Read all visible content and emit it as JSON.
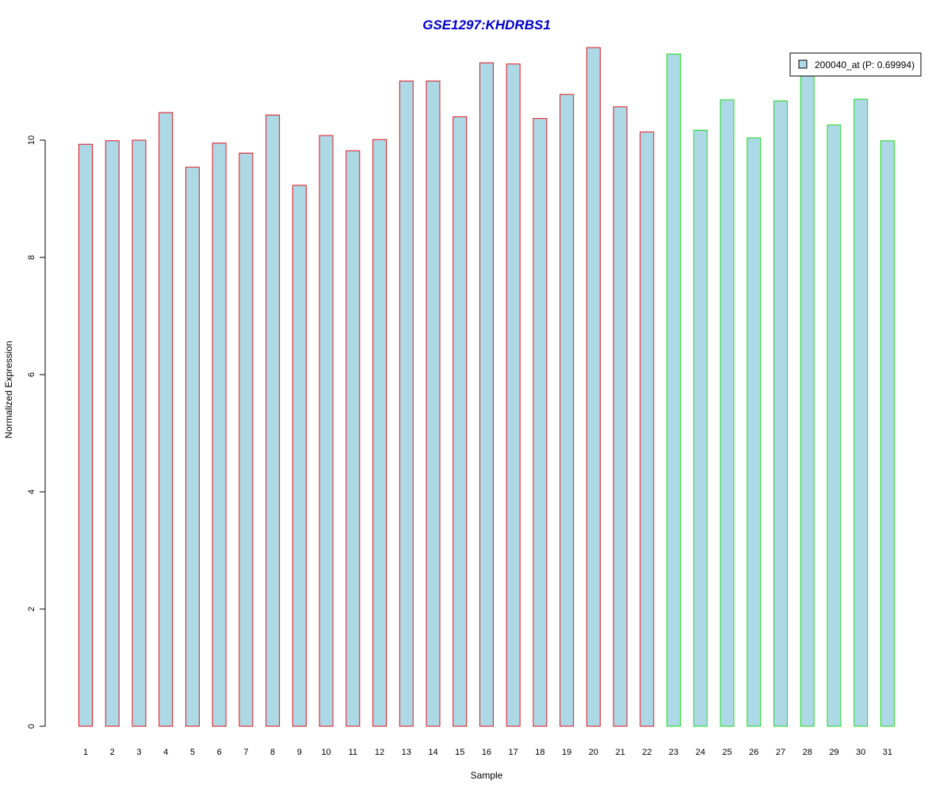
{
  "chart_data": {
    "type": "bar",
    "title": "GSE1297:KHDRBS1",
    "xlabel": "Sample",
    "ylabel": "Normalized Expression",
    "ylim": [
      0,
      11.6
    ],
    "yticks": [
      0,
      2,
      4,
      6,
      8,
      10
    ],
    "categories": [
      "1",
      "2",
      "3",
      "4",
      "5",
      "6",
      "7",
      "8",
      "9",
      "10",
      "11",
      "12",
      "13",
      "14",
      "15",
      "16",
      "17",
      "18",
      "19",
      "20",
      "21",
      "22",
      "23",
      "24",
      "25",
      "26",
      "27",
      "28",
      "29",
      "30",
      "31"
    ],
    "values": [
      9.93,
      9.99,
      10.0,
      10.47,
      9.54,
      9.95,
      9.78,
      10.43,
      9.23,
      10.08,
      9.82,
      10.01,
      11.01,
      11.01,
      10.4,
      11.32,
      11.3,
      10.37,
      10.78,
      11.58,
      10.57,
      10.14,
      11.47,
      10.17,
      10.69,
      10.04,
      10.67,
      11.12,
      10.26,
      10.7,
      9.99
    ],
    "groups": [
      "red",
      "red",
      "red",
      "red",
      "red",
      "red",
      "red",
      "red",
      "red",
      "red",
      "red",
      "red",
      "red",
      "red",
      "red",
      "red",
      "red",
      "red",
      "red",
      "red",
      "red",
      "red",
      "green",
      "green",
      "green",
      "green",
      "green",
      "green",
      "green",
      "green",
      "green"
    ],
    "legend": {
      "label": "200040_at (P: 0.69994)",
      "position": "top-right"
    },
    "grid": false,
    "colors": {
      "fill": "#add8e6",
      "border_group1": "#e0141e",
      "border_group2": "#1edc1e",
      "title": "#0000cc",
      "axis": "#000000"
    }
  }
}
